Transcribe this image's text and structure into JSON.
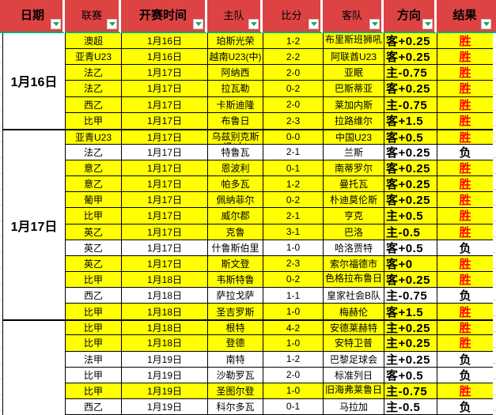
{
  "colors": {
    "header_bg": "#DD4343",
    "win_row_bg": "#FFFF00",
    "loss_row_bg": "#FFFFFF",
    "win_text": "#FF0000",
    "loss_text": "#000000",
    "filter_arrow_green": "#21A366",
    "header_underline_teal": "#00A878"
  },
  "header": {
    "columns": [
      {
        "key": "date",
        "label": "日期",
        "bold": true
      },
      {
        "key": "league",
        "label": "联赛",
        "bold": false
      },
      {
        "key": "time",
        "label": "开赛时间",
        "bold": true
      },
      {
        "key": "home",
        "label": "主队",
        "bold": false
      },
      {
        "key": "score",
        "label": "比分",
        "bold": false
      },
      {
        "key": "away",
        "label": "客队",
        "bold": false
      },
      {
        "key": "direction",
        "label": "方向",
        "bold": true
      },
      {
        "key": "result",
        "label": "结果",
        "bold": true
      }
    ],
    "filter_icon": "filter-dropdown-arrow"
  },
  "groups": [
    {
      "date": "1月16日",
      "span": 6
    },
    {
      "date": "1月17日",
      "span": 12
    },
    {
      "date": "",
      "span": 6
    }
  ],
  "rows": [
    {
      "league": "澳超",
      "time": "1月16日",
      "home": "珀斯光荣",
      "score": "1-2",
      "away": "布里斯班狮吼",
      "away_wrap": true,
      "direction": "客+0.25",
      "result": "胜",
      "bg": "win"
    },
    {
      "league": "亚青U23",
      "time": "1月16日",
      "home": "越南U23(中)",
      "score": "2-2",
      "away": "阿联酋U23",
      "direction": "客+0.25",
      "result": "胜",
      "bg": "win"
    },
    {
      "league": "法乙",
      "time": "1月17日",
      "home": "阿纳西",
      "score": "2-0",
      "away": "亚眠",
      "direction": "主-0.75",
      "result": "胜",
      "bg": "win"
    },
    {
      "league": "法乙",
      "time": "1月17日",
      "home": "拉瓦勒",
      "score": "0-2",
      "away": "巴斯蒂亚",
      "direction": "客+0.25",
      "result": "胜",
      "bg": "win"
    },
    {
      "league": "西乙",
      "time": "1月17日",
      "home": "卡斯迪隆",
      "score": "2-0",
      "away": "莱加内斯",
      "direction": "主-0.75",
      "result": "胜",
      "bg": "win"
    },
    {
      "league": "比甲",
      "time": "1月17日",
      "home": "布鲁日",
      "score": "2-3",
      "away": "拉路维尔",
      "direction": "客+1.5",
      "result": "胜",
      "bg": "win"
    },
    {
      "league": "亚青U23",
      "time": "1月17日",
      "home": "乌兹别克斯坦(中)",
      "home_wrap": true,
      "score": "0-0",
      "away": "中国U23",
      "direction": "客+0.5",
      "result": "胜",
      "bg": "win"
    },
    {
      "league": "法乙",
      "time": "1月17日",
      "home": "特鲁瓦",
      "score": "2-1",
      "away": "兰斯",
      "direction": "客+0.25",
      "result": "负",
      "bg": "loss"
    },
    {
      "league": "意乙",
      "time": "1月17日",
      "home": "恩波利",
      "score": "0-1",
      "away": "南蒂罗尔",
      "direction": "客+0.25",
      "result": "胜",
      "bg": "win"
    },
    {
      "league": "意乙",
      "time": "1月17日",
      "home": "帕多瓦",
      "score": "1-2",
      "away": "曼托瓦",
      "direction": "客+0.25",
      "result": "胜",
      "bg": "win"
    },
    {
      "league": "葡甲",
      "time": "1月17日",
      "home": "佩纳菲尔",
      "score": "0-2",
      "away": "朴迪莫伦斯",
      "direction": "客+0.25",
      "result": "胜",
      "bg": "win"
    },
    {
      "league": "比甲",
      "time": "1月17日",
      "home": "威尔郡",
      "score": "2-1",
      "away": "亨克",
      "direction": "主+0.5",
      "result": "胜",
      "bg": "win"
    },
    {
      "league": "英乙",
      "time": "1月17日",
      "home": "克鲁",
      "score": "3-1",
      "away": "巴洛",
      "direction": "主-0.5",
      "result": "胜",
      "bg": "win"
    },
    {
      "league": "英乙",
      "time": "1月17日",
      "home": "什鲁斯伯里",
      "score": "1-0",
      "away": "哈洛贾特",
      "direction": "客+0.5",
      "result": "负",
      "bg": "loss"
    },
    {
      "league": "英乙",
      "time": "1月17日",
      "home": "斯文登",
      "score": "2-3",
      "away": "索尔福德市",
      "direction": "客+0",
      "result": "胜",
      "bg": "win"
    },
    {
      "league": "比甲",
      "time": "1月18日",
      "home": "韦斯特鲁",
      "score": "0-2",
      "away": "色格拉布鲁日",
      "away_wrap": true,
      "direction": "客+0.25",
      "result": "胜",
      "bg": "win"
    },
    {
      "league": "西乙",
      "time": "1月18日",
      "home": "萨拉戈萨",
      "score": "1-1",
      "away": "皇家社会B队",
      "direction": "主-0.75",
      "result": "负",
      "bg": "loss"
    },
    {
      "league": "比甲",
      "time": "1月18日",
      "home": "圣吉罗斯",
      "score": "1-0",
      "away": "梅赫伦",
      "direction": "客+1.5",
      "result": "胜",
      "bg": "win"
    },
    {
      "league": "比甲",
      "time": "1月18日",
      "home": "根特",
      "score": "4-2",
      "away": "安德莱赫特",
      "direction": "主+0.25",
      "result": "胜",
      "bg": "win"
    },
    {
      "league": "比甲",
      "time": "1月18日",
      "home": "登德",
      "score": "1-0",
      "away": "安特卫普",
      "direction": "主+0.25",
      "result": "胜",
      "bg": "win"
    },
    {
      "league": "法甲",
      "time": "1月19日",
      "home": "南特",
      "score": "1-2",
      "away": "巴黎足球会",
      "direction": "主+0.25",
      "result": "负",
      "bg": "loss"
    },
    {
      "league": "比甲",
      "time": "1月19日",
      "home": "沙勒罗瓦",
      "score": "2-0",
      "away": "标准列日",
      "direction": "客+0.5",
      "result": "负",
      "bg": "loss"
    },
    {
      "league": "比甲",
      "time": "1月19日",
      "home": "圣图尔登",
      "score": "1-0",
      "away": "旧海弗莱鲁日",
      "away_wrap": true,
      "direction": "主-0.75",
      "result": "胜",
      "bg": "win"
    },
    {
      "league": "西乙",
      "time": "1月19日",
      "home": "科尔多瓦",
      "score": "0-1",
      "away": "马拉加",
      "direction": "主-0.5",
      "result": "负",
      "bg": "loss"
    }
  ]
}
